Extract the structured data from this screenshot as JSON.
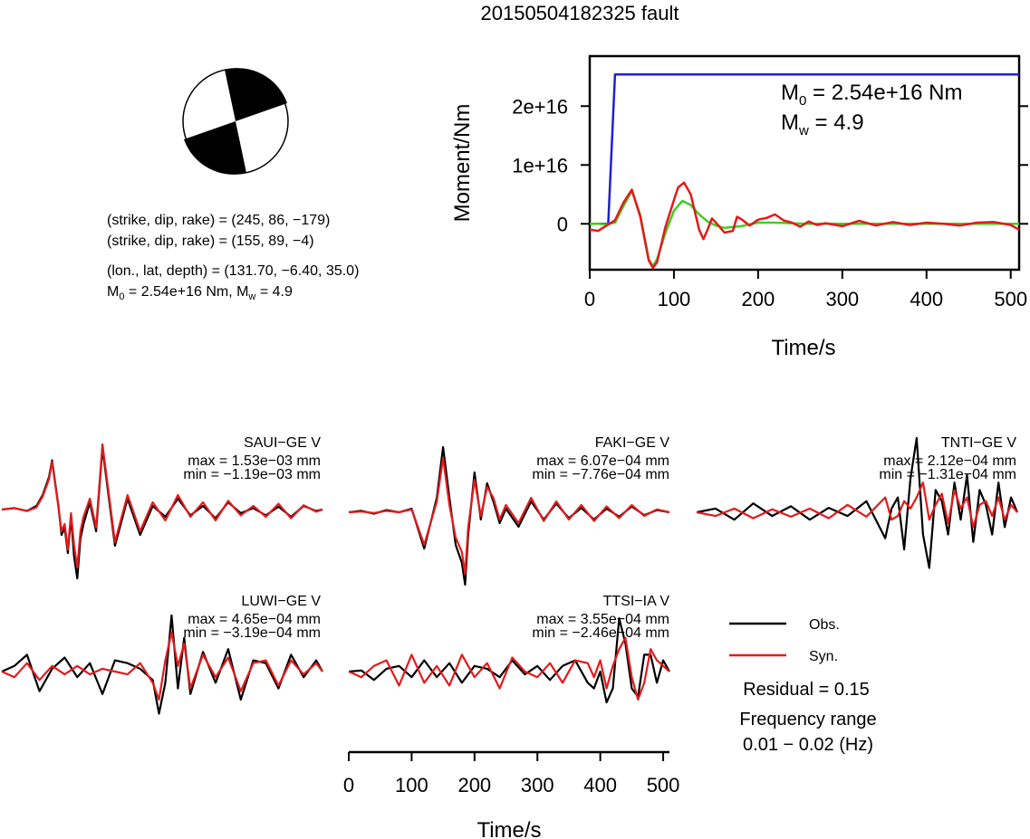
{
  "title": "20150504182325 fault",
  "mechanism": {
    "line1": "(strike, dip, rake) = (245, 86, −179)",
    "line2": "(strike, dip, rake) = (155, 89, −4)",
    "line3": "(lon., lat, depth) = (131.70, −6.40, 35.0)",
    "m0_prefix": "M",
    "m0_sub": "0",
    "m0_rest": " = 2.54e+16 Nm, M",
    "mw_sub": "w",
    "mw_rest": " = 4.9"
  },
  "colors": {
    "obs": "#000000",
    "syn": "#e31a1c",
    "moment": "#1f1fd6",
    "fit": "#44cc22"
  },
  "chart_data": [
    {
      "type": "line",
      "title": "",
      "xlabel": "Time/s",
      "ylabel": "Moment/Nm",
      "xlim": [
        0,
        510
      ],
      "ylim": [
        -7800000000000000.0,
        2.85e+16
      ],
      "xticks": [
        0,
        100,
        200,
        300,
        400,
        500
      ],
      "yticks": [
        0,
        1e+16,
        2e+16
      ],
      "ytick_labels": [
        "0",
        "1e+16",
        "2e+16"
      ],
      "annotation": {
        "m0_text": " = 2.54e+16 Nm",
        "m0_sub": "0",
        "mw_text": " = 4.9",
        "mw_sub": "w",
        "letter": "M"
      },
      "series": [
        {
          "color": "blue",
          "x": [
            0,
            22,
            30,
            510
          ],
          "y": [
            0,
            0,
            2.54e+16,
            2.54e+16
          ]
        },
        {
          "color": "green",
          "x": [
            0,
            10,
            20,
            30,
            40,
            50,
            60,
            70,
            75,
            80,
            90,
            100,
            110,
            120,
            130,
            140,
            150,
            160,
            180,
            200,
            220,
            260,
            300,
            510
          ],
          "y": [
            0,
            0,
            -100000000000000.0,
            200000000000000.0,
            3000000000000000.0,
            5600000000000000.0,
            1500000000000000.0,
            -6000000000000000.0,
            -7200000000000000.0,
            -6000000000000000.0,
            -1500000000000000.0,
            2200000000000000.0,
            3900000000000000.0,
            3200000000000000.0,
            1600000000000000.0,
            400000000000000.0,
            -300000000000000.0,
            -700000000000000.0,
            -400000000000000.0,
            200000000000000.0,
            200000000000000.0,
            0,
            0,
            0
          ]
        },
        {
          "color": "red",
          "x": [
            0,
            10,
            20,
            30,
            40,
            50,
            60,
            70,
            75,
            80,
            90,
            100,
            105,
            112,
            120,
            130,
            135,
            140,
            145,
            150,
            160,
            170,
            175,
            180,
            190,
            200,
            210,
            220,
            230,
            240,
            250,
            260,
            270,
            280,
            300,
            320,
            340,
            360,
            380,
            400,
            420,
            440,
            460,
            480,
            500,
            510
          ],
          "y": [
            -1000000000000000.0,
            -1200000000000000.0,
            -300000000000000.0,
            600000000000000.0,
            3600000000000000.0,
            5800000000000000.0,
            1200000000000000.0,
            -6200000000000000.0,
            -7500000000000000.0,
            -6500000000000000.0,
            -500000000000000.0,
            4000000000000000.0,
            6200000000000000.0,
            7000000000000000.0,
            5000000000000000.0,
            -1000000000000000.0,
            -2600000000000000.0,
            -1000000000000000.0,
            900000000000000.0,
            200000000000000.0,
            -1500000000000000.0,
            -1200000000000000.0,
            1200000000000000.0,
            800000000000000.0,
            -300000000000000.0,
            700000000000000.0,
            1000000000000000.0,
            1600000000000000.0,
            600000000000000.0,
            200000000000000.0,
            -500000000000000.0,
            400000000000000.0,
            -200000000000000.0,
            100000000000000.0,
            -400000000000000.0,
            500000000000000.0,
            -300000000000000.0,
            300000000000000.0,
            -200000000000000.0,
            200000000000000.0,
            0.0,
            -300000000000000.0,
            200000000000000.0,
            300000000000000.0,
            -200000000000000.0,
            -1000000000000000.0
          ]
        }
      ]
    },
    {
      "type": "line",
      "title": "",
      "xlabel": "Time/s",
      "xlim": [
        0,
        510
      ],
      "xticks": [
        0,
        100,
        200,
        300,
        400,
        500
      ],
      "legend": {
        "position": "bottom-right",
        "entries": [
          "Obs.",
          "Syn."
        ]
      },
      "residual": "Residual = 0.15",
      "freq_label": "Frequency range",
      "freq_value": "0.01 − 0.02 (Hz)",
      "panels": [
        {
          "name": "SAUI−GE V",
          "max": "max = 1.53e−03 mm",
          "min": "min = −1.19e−03 mm",
          "obs": {
            "peak": 1.0,
            "trough": -0.86,
            "base": 0.0,
            "x": [
              0,
              20,
              40,
              55,
              65,
              75,
              80,
              90,
              95,
              100,
              105,
              110,
              115,
              120,
              125,
              130,
              140,
              150,
              160,
              180,
              200,
              220,
              240,
              260,
              280,
              300,
              320,
              340,
              360,
              380,
              400,
              420,
              440,
              460,
              480,
              500,
              510
            ],
            "y": [
              0,
              0.02,
              -0.02,
              0.05,
              0.2,
              0.45,
              0.68,
              0.05,
              -0.35,
              -0.25,
              -0.6,
              -0.1,
              -0.65,
              -0.95,
              -0.4,
              -0.2,
              0.1,
              -0.3,
              0.85,
              -0.5,
              0.15,
              -0.35,
              0.05,
              -0.1,
              0.15,
              -0.08,
              0.05,
              -0.12,
              0.1,
              -0.05,
              0.02,
              -0.08,
              0.04,
              -0.1,
              0.05,
              -0.02,
              0.0
            ]
          },
          "syn": {
            "x": [
              0,
              20,
              40,
              55,
              65,
              75,
              80,
              90,
              95,
              100,
              105,
              110,
              115,
              120,
              125,
              130,
              140,
              150,
              160,
              180,
              200,
              220,
              240,
              260,
              280,
              300,
              320,
              340,
              360,
              380,
              400,
              420,
              440,
              460,
              480,
              500,
              510
            ],
            "y": [
              0,
              0.02,
              -0.02,
              0.03,
              0.18,
              0.42,
              0.66,
              0.03,
              -0.3,
              -0.2,
              -0.55,
              -0.05,
              -0.5,
              -0.8,
              -0.3,
              -0.1,
              0.15,
              -0.25,
              0.9,
              -0.45,
              0.2,
              -0.3,
              0.1,
              -0.15,
              0.2,
              -0.1,
              0.1,
              -0.15,
              0.12,
              -0.08,
              0.05,
              -0.1,
              0.08,
              -0.12,
              0.06,
              -0.03,
              0.0
            ]
          }
        },
        {
          "name": "FAKI−GE V",
          "max": "max = 6.07e−04 mm",
          "min": "min = −7.76e−04 mm",
          "obs": {
            "x": [
              0,
              20,
              40,
              60,
              80,
              100,
              120,
              140,
              150,
              160,
              170,
              180,
              185,
              190,
              200,
              210,
              220,
              230,
              240,
              250,
              270,
              290,
              310,
              330,
              350,
              370,
              390,
              410,
              430,
              450,
              470,
              490,
              510
            ],
            "y": [
              0,
              0.02,
              -0.02,
              0.03,
              0.0,
              0.05,
              -0.5,
              0.2,
              0.9,
              0.2,
              -0.45,
              -0.7,
              -1.0,
              -0.3,
              0.55,
              -0.1,
              0.4,
              0.15,
              -0.15,
              0.05,
              -0.2,
              0.15,
              -0.1,
              0.12,
              -0.08,
              0.06,
              -0.1,
              0.05,
              -0.06,
              0.08,
              -0.04,
              0.03,
              0.0
            ]
          },
          "syn": {
            "x": [
              0,
              20,
              40,
              60,
              80,
              100,
              120,
              140,
              150,
              160,
              170,
              180,
              185,
              190,
              200,
              210,
              220,
              230,
              240,
              250,
              270,
              290,
              310,
              330,
              350,
              370,
              390,
              410,
              430,
              450,
              470,
              490,
              510
            ],
            "y": [
              0,
              0.01,
              -0.01,
              0.02,
              0.0,
              0.04,
              -0.45,
              0.15,
              0.75,
              0.1,
              -0.35,
              -0.55,
              -0.85,
              -0.2,
              0.45,
              -0.05,
              0.35,
              0.2,
              -0.1,
              0.1,
              -0.15,
              0.2,
              -0.12,
              0.15,
              -0.1,
              0.1,
              -0.12,
              0.08,
              -0.08,
              0.1,
              -0.05,
              0.04,
              0.0
            ]
          }
        },
        {
          "name": "TNTI−GE V",
          "max": "max = 2.12e−04 mm",
          "min": "min = −1.31e−04 mm",
          "obs": {
            "x": [
              0,
              30,
              60,
              90,
              120,
              150,
              180,
              210,
              240,
              270,
              300,
              310,
              320,
              330,
              340,
              350,
              360,
              370,
              380,
              390,
              400,
              410,
              420,
              430,
              440,
              450,
              460,
              470,
              480,
              490,
              500,
              510
            ],
            "y": [
              0,
              0.05,
              -0.1,
              0.12,
              -0.05,
              0.08,
              -0.1,
              0.06,
              -0.05,
              0.15,
              -0.35,
              0.05,
              0.2,
              -0.5,
              0.45,
              1.0,
              -0.3,
              -0.75,
              0.3,
              0.15,
              -0.3,
              0.4,
              -0.1,
              0.5,
              -0.4,
              0.3,
              0.1,
              -0.3,
              0.4,
              -0.2,
              0.2,
              0.0
            ]
          },
          "syn": {
            "x": [
              0,
              30,
              60,
              90,
              120,
              150,
              180,
              210,
              240,
              270,
              300,
              310,
              320,
              330,
              340,
              350,
              360,
              370,
              380,
              390,
              400,
              410,
              420,
              430,
              440,
              450,
              460,
              470,
              480,
              490,
              500,
              510
            ],
            "y": [
              0,
              -0.05,
              0.05,
              -0.08,
              0.04,
              -0.06,
              0.05,
              -0.08,
              0.1,
              -0.06,
              0.2,
              -0.1,
              -0.05,
              0.15,
              0.05,
              0.2,
              0.4,
              -0.1,
              0.1,
              0.25,
              -0.15,
              0.3,
              0.05,
              0.2,
              -0.2,
              0.1,
              0.15,
              -0.05,
              0.2,
              -0.1,
              0.1,
              0.0
            ]
          }
        },
        {
          "name": "LUWI−GE V",
          "max": "max = 4.65e−04 mm",
          "min": "min = −3.19e−04 mm",
          "obs": {
            "x": [
              0,
              20,
              40,
              60,
              80,
              100,
              120,
              140,
              160,
              180,
              200,
              220,
              240,
              250,
              260,
              270,
              280,
              290,
              300,
              320,
              340,
              360,
              380,
              400,
              420,
              440,
              460,
              480,
              500,
              510
            ],
            "y": [
              0,
              0.1,
              0.3,
              -0.35,
              0.05,
              0.25,
              -0.1,
              0.15,
              -0.4,
              0.2,
              0.15,
              0.05,
              -0.15,
              -0.75,
              -0.2,
              1.0,
              -0.3,
              0.6,
              -0.4,
              0.35,
              -0.2,
              0.4,
              -0.5,
              0.2,
              0.15,
              -0.3,
              0.3,
              -0.1,
              0.2,
              0.0
            ]
          },
          "syn": {
            "x": [
              0,
              20,
              40,
              60,
              80,
              100,
              120,
              140,
              160,
              180,
              200,
              220,
              240,
              250,
              260,
              270,
              280,
              290,
              300,
              320,
              340,
              360,
              380,
              400,
              420,
              440,
              460,
              480,
              500,
              510
            ],
            "y": [
              0,
              -0.1,
              0.15,
              -0.15,
              0.1,
              -0.05,
              0.1,
              -0.05,
              0.05,
              0.0,
              -0.05,
              0.15,
              -0.2,
              -0.5,
              0.2,
              0.7,
              0.1,
              0.5,
              -0.3,
              0.3,
              -0.1,
              0.25,
              -0.35,
              0.15,
              0.2,
              -0.25,
              0.2,
              -0.05,
              0.15,
              0.0
            ]
          }
        },
        {
          "name": "TTSI−IA V",
          "max": "max = 3.55e−04 mm",
          "min": "min = −2.46e−04 mm",
          "obs": {
            "x": [
              0,
              20,
              40,
              60,
              80,
              100,
              120,
              140,
              160,
              180,
              200,
              220,
              240,
              260,
              280,
              300,
              320,
              340,
              360,
              380,
              390,
              400,
              410,
              420,
              430,
              440,
              450,
              460,
              470,
              480,
              490,
              500,
              510
            ],
            "y": [
              0,
              0.02,
              -0.15,
              0.05,
              0.1,
              -0.1,
              0.2,
              -0.1,
              0.15,
              -0.2,
              0.1,
              0.05,
              -0.1,
              0.2,
              -0.05,
              0.1,
              -0.15,
              0.1,
              0.2,
              -0.2,
              -0.3,
              0.0,
              -0.55,
              -0.3,
              0.95,
              0.5,
              -0.3,
              -0.45,
              0.3,
              0.3,
              -0.2,
              0.2,
              0.0
            ]
          },
          "syn": {
            "x": [
              0,
              20,
              40,
              60,
              80,
              100,
              120,
              140,
              160,
              180,
              200,
              220,
              240,
              260,
              280,
              300,
              320,
              340,
              360,
              380,
              390,
              400,
              410,
              420,
              430,
              440,
              450,
              460,
              470,
              480,
              490,
              500,
              510
            ],
            "y": [
              0,
              -0.1,
              0.1,
              0.2,
              -0.25,
              0.3,
              -0.2,
              0.1,
              -0.25,
              0.3,
              -0.1,
              0.15,
              -0.3,
              0.25,
              0.0,
              -0.1,
              0.15,
              -0.2,
              0.2,
              0.15,
              -0.1,
              0.2,
              -0.3,
              0.1,
              0.4,
              0.6,
              -0.1,
              -0.5,
              -0.2,
              0.4,
              0.2,
              0.1,
              0.0
            ]
          }
        }
      ]
    }
  ]
}
